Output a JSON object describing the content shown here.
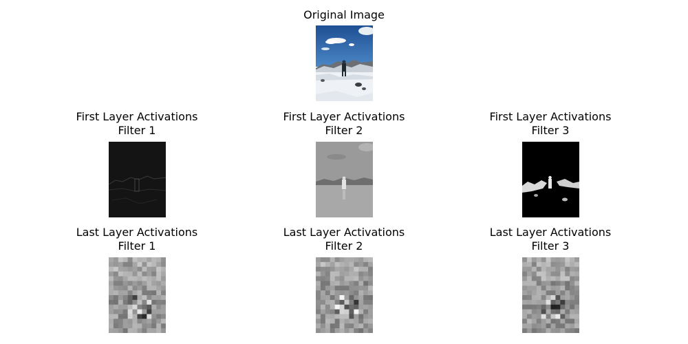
{
  "original": {
    "title": "Original Image"
  },
  "first_layer": [
    {
      "line1": "First Layer Activations",
      "line2": "Filter 1"
    },
    {
      "line1": "First Layer Activations",
      "line2": "Filter 2"
    },
    {
      "line1": "First Layer Activations",
      "line2": "Filter 3"
    }
  ],
  "last_layer": [
    {
      "line1": "Last Layer Activations",
      "line2": "Filter 1"
    },
    {
      "line1": "Last Layer Activations",
      "line2": "Filter 2"
    },
    {
      "line1": "Last Layer Activations",
      "line2": "Filter 3"
    }
  ],
  "colors": {
    "sky": "#2f64a8",
    "snow": "#eef2f6",
    "figure": "#1f2a33"
  }
}
